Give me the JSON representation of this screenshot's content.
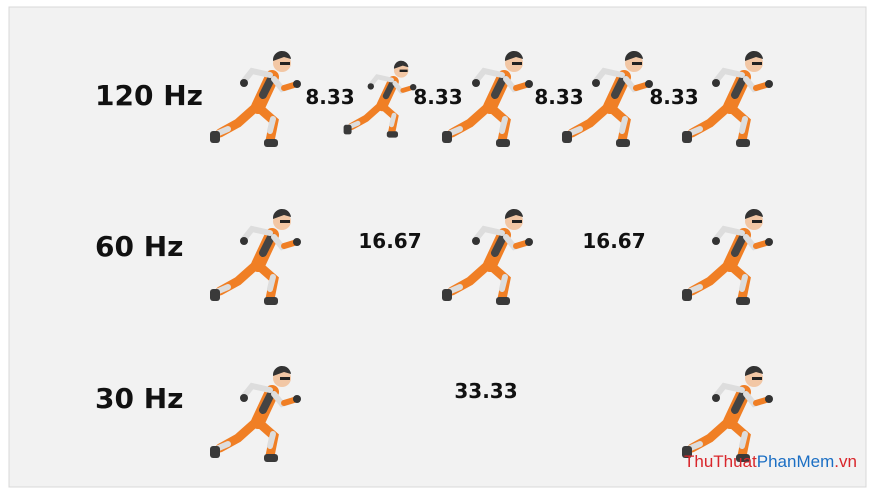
{
  "rows": [
    {
      "label": "120 Hz",
      "intervals": [
        "8.33",
        "8.33",
        "8.33",
        "8.33"
      ]
    },
    {
      "label": "60 Hz",
      "intervals": [
        "16.67",
        "16.67"
      ]
    },
    {
      "label": "30 Hz",
      "intervals": [
        "33.33"
      ]
    }
  ],
  "watermark": [
    "ThuThuat",
    "PhanMem",
    ".vn"
  ]
}
